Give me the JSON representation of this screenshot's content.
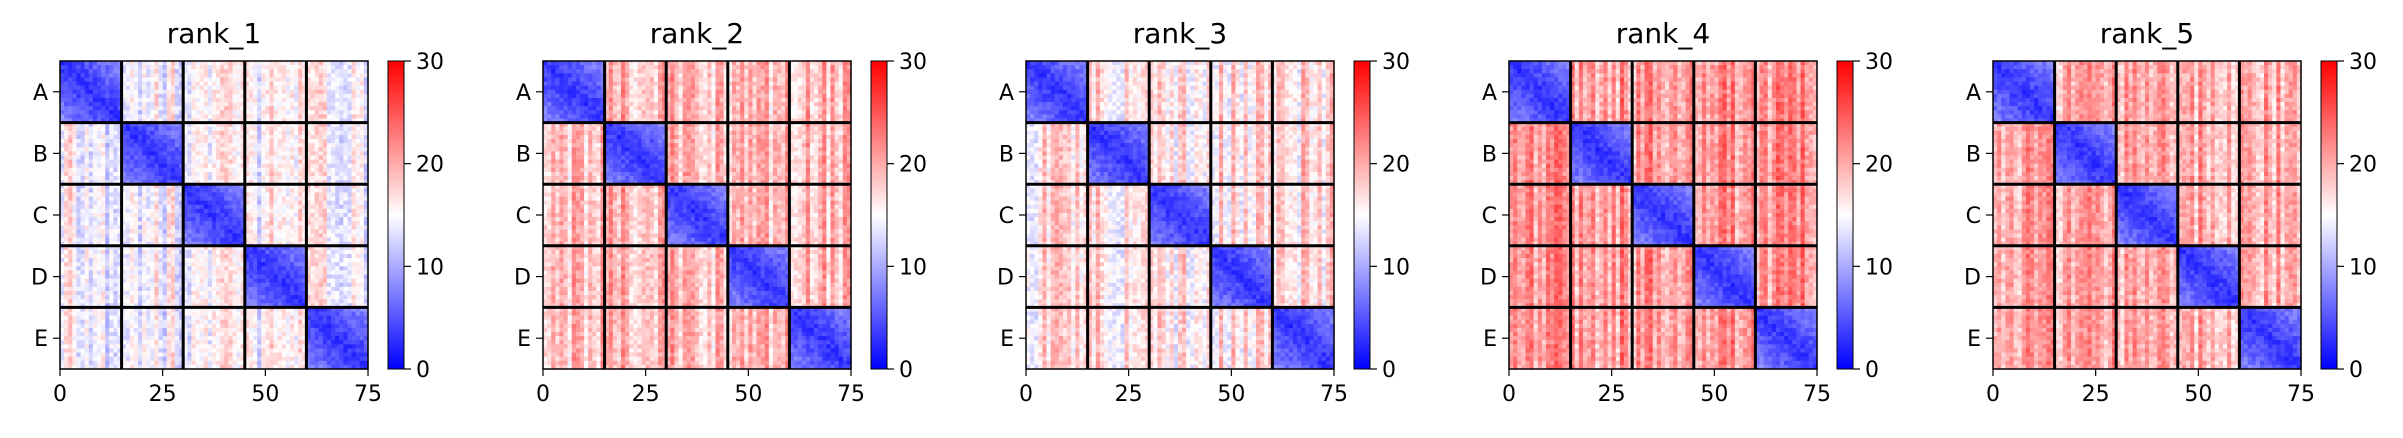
{
  "chart_data": [
    {
      "type": "heatmap",
      "title": "rank_1",
      "row_labels": [
        "A",
        "B",
        "C",
        "D",
        "E"
      ],
      "xticks": [
        0,
        25,
        50,
        75
      ],
      "xlim": [
        0,
        75
      ],
      "block_size": 15,
      "colorbar": {
        "ticks": [
          0,
          10,
          20,
          30
        ],
        "range": [
          0,
          30
        ],
        "colormap": "bwr"
      },
      "diagonal_value": 3,
      "off_diagonal_value": 15
    },
    {
      "type": "heatmap",
      "title": "rank_2",
      "row_labels": [
        "A",
        "B",
        "C",
        "D",
        "E"
      ],
      "xticks": [
        0,
        25,
        50,
        75
      ],
      "xlim": [
        0,
        75
      ],
      "block_size": 15,
      "colorbar": {
        "ticks": [
          0,
          10,
          20,
          30
        ],
        "range": [
          0,
          30
        ],
        "colormap": "bwr"
      },
      "diagonal_value": 3,
      "off_diagonal_value": 19
    },
    {
      "type": "heatmap",
      "title": "rank_3",
      "row_labels": [
        "A",
        "B",
        "C",
        "D",
        "E"
      ],
      "xticks": [
        0,
        25,
        50,
        75
      ],
      "xlim": [
        0,
        75
      ],
      "block_size": 15,
      "colorbar": {
        "ticks": [
          0,
          10,
          20,
          30
        ],
        "range": [
          0,
          30
        ],
        "colormap": "bwr"
      },
      "diagonal_value": 3,
      "off_diagonal_value": 17
    },
    {
      "type": "heatmap",
      "title": "rank_4",
      "row_labels": [
        "A",
        "B",
        "C",
        "D",
        "E"
      ],
      "xticks": [
        0,
        25,
        50,
        75
      ],
      "xlim": [
        0,
        75
      ],
      "block_size": 15,
      "colorbar": {
        "ticks": [
          0,
          10,
          20,
          30
        ],
        "range": [
          0,
          30
        ],
        "colormap": "bwr"
      },
      "diagonal_value": 3,
      "off_diagonal_value": 21
    },
    {
      "type": "heatmap",
      "title": "rank_5",
      "row_labels": [
        "A",
        "B",
        "C",
        "D",
        "E"
      ],
      "xticks": [
        0,
        25,
        50,
        75
      ],
      "xlim": [
        0,
        75
      ],
      "block_size": 15,
      "colorbar": {
        "ticks": [
          0,
          10,
          20,
          30
        ],
        "range": [
          0,
          30
        ],
        "colormap": "bwr"
      },
      "diagonal_value": 3,
      "off_diagonal_value": 20
    }
  ]
}
